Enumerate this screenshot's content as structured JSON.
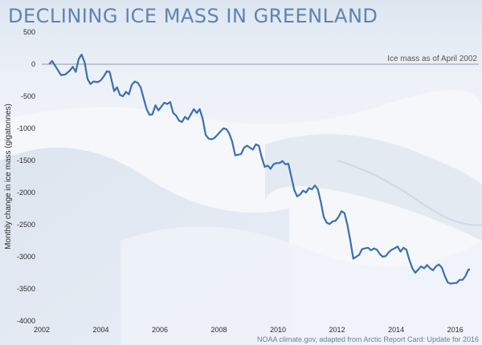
{
  "chart_data": {
    "type": "line",
    "title": "Declining ice mass in Greenland",
    "ylabel": "Monthly change in ice mass (gigatonnes)",
    "xlabel": "",
    "xlim": [
      2002,
      2016.8
    ],
    "ylim": [
      -4000,
      500
    ],
    "x_ticks": [
      "2002",
      "2004",
      "2006",
      "2008",
      "2010",
      "2012",
      "2014",
      "2016"
    ],
    "y_ticks": [
      "500",
      "0",
      "-500",
      "-1000",
      "-1500",
      "-2000",
      "-2500",
      "-3000",
      "-3500",
      "-4000"
    ],
    "baseline": {
      "y": 0,
      "label": "Ice mass as of April 2002"
    },
    "line_color": "#3b6fb0",
    "series": [
      {
        "points": [
          [
            2002.25,
            0
          ],
          [
            2002.35,
            50
          ],
          [
            2002.5,
            -60
          ],
          [
            2002.65,
            -170
          ],
          [
            2002.8,
            -160
          ],
          [
            2002.95,
            -100
          ],
          [
            2003.05,
            -40
          ],
          [
            2003.15,
            -120
          ],
          [
            2003.25,
            80
          ],
          [
            2003.35,
            150
          ],
          [
            2003.45,
            30
          ],
          [
            2003.55,
            -230
          ],
          [
            2003.65,
            -310
          ],
          [
            2003.75,
            -270
          ],
          [
            2003.9,
            -280
          ],
          [
            2004.0,
            -250
          ],
          [
            2004.1,
            -190
          ],
          [
            2004.2,
            -110
          ],
          [
            2004.3,
            -120
          ],
          [
            2004.35,
            -220
          ],
          [
            2004.45,
            -420
          ],
          [
            2004.55,
            -360
          ],
          [
            2004.65,
            -480
          ],
          [
            2004.75,
            -500
          ],
          [
            2004.85,
            -430
          ],
          [
            2004.95,
            -470
          ],
          [
            2005.05,
            -320
          ],
          [
            2005.15,
            -270
          ],
          [
            2005.25,
            -290
          ],
          [
            2005.35,
            -360
          ],
          [
            2005.45,
            -530
          ],
          [
            2005.55,
            -700
          ],
          [
            2005.65,
            -790
          ],
          [
            2005.75,
            -780
          ],
          [
            2005.85,
            -640
          ],
          [
            2005.95,
            -720
          ],
          [
            2006.05,
            -660
          ],
          [
            2006.15,
            -600
          ],
          [
            2006.25,
            -620
          ],
          [
            2006.35,
            -590
          ],
          [
            2006.45,
            -760
          ],
          [
            2006.55,
            -800
          ],
          [
            2006.65,
            -880
          ],
          [
            2006.75,
            -900
          ],
          [
            2006.85,
            -820
          ],
          [
            2006.95,
            -860
          ],
          [
            2007.05,
            -780
          ],
          [
            2007.15,
            -700
          ],
          [
            2007.25,
            -760
          ],
          [
            2007.35,
            -700
          ],
          [
            2007.45,
            -850
          ],
          [
            2007.55,
            -1100
          ],
          [
            2007.65,
            -1160
          ],
          [
            2007.75,
            -1170
          ],
          [
            2007.85,
            -1150
          ],
          [
            2007.95,
            -1100
          ],
          [
            2008.05,
            -1050
          ],
          [
            2008.15,
            -1000
          ],
          [
            2008.25,
            -1010
          ],
          [
            2008.35,
            -1080
          ],
          [
            2008.45,
            -1210
          ],
          [
            2008.55,
            -1420
          ],
          [
            2008.65,
            -1410
          ],
          [
            2008.75,
            -1400
          ],
          [
            2008.85,
            -1300
          ],
          [
            2008.95,
            -1270
          ],
          [
            2009.05,
            -1300
          ],
          [
            2009.15,
            -1330
          ],
          [
            2009.25,
            -1250
          ],
          [
            2009.35,
            -1270
          ],
          [
            2009.45,
            -1450
          ],
          [
            2009.55,
            -1600
          ],
          [
            2009.65,
            -1580
          ],
          [
            2009.75,
            -1630
          ],
          [
            2009.85,
            -1560
          ],
          [
            2009.95,
            -1540
          ],
          [
            2010.05,
            -1540
          ],
          [
            2010.15,
            -1510
          ],
          [
            2010.25,
            -1560
          ],
          [
            2010.35,
            -1550
          ],
          [
            2010.45,
            -1750
          ],
          [
            2010.55,
            -1960
          ],
          [
            2010.65,
            -2060
          ],
          [
            2010.75,
            -2030
          ],
          [
            2010.85,
            -1970
          ],
          [
            2010.95,
            -2000
          ],
          [
            2011.05,
            -1930
          ],
          [
            2011.15,
            -1950
          ],
          [
            2011.25,
            -1890
          ],
          [
            2011.35,
            -1950
          ],
          [
            2011.45,
            -2150
          ],
          [
            2011.55,
            -2380
          ],
          [
            2011.65,
            -2470
          ],
          [
            2011.75,
            -2490
          ],
          [
            2011.85,
            -2450
          ],
          [
            2011.95,
            -2440
          ],
          [
            2012.05,
            -2380
          ],
          [
            2012.15,
            -2290
          ],
          [
            2012.25,
            -2320
          ],
          [
            2012.35,
            -2500
          ],
          [
            2012.45,
            -2750
          ],
          [
            2012.55,
            -3030
          ],
          [
            2012.65,
            -3000
          ],
          [
            2012.75,
            -2970
          ],
          [
            2012.85,
            -2880
          ],
          [
            2012.95,
            -2870
          ],
          [
            2013.05,
            -2860
          ],
          [
            2013.15,
            -2900
          ],
          [
            2013.25,
            -2870
          ],
          [
            2013.35,
            -2890
          ],
          [
            2013.45,
            -2960
          ],
          [
            2013.55,
            -3000
          ],
          [
            2013.65,
            -2990
          ],
          [
            2013.75,
            -2930
          ],
          [
            2013.85,
            -2890
          ],
          [
            2013.95,
            -2870
          ],
          [
            2014.05,
            -2840
          ],
          [
            2014.15,
            -2920
          ],
          [
            2014.25,
            -2860
          ],
          [
            2014.35,
            -2890
          ],
          [
            2014.45,
            -3050
          ],
          [
            2014.55,
            -3180
          ],
          [
            2014.65,
            -3250
          ],
          [
            2014.75,
            -3200
          ],
          [
            2014.85,
            -3150
          ],
          [
            2014.95,
            -3180
          ],
          [
            2015.05,
            -3130
          ],
          [
            2015.15,
            -3180
          ],
          [
            2015.25,
            -3210
          ],
          [
            2015.35,
            -3150
          ],
          [
            2015.45,
            -3120
          ],
          [
            2015.55,
            -3170
          ],
          [
            2015.65,
            -3300
          ],
          [
            2015.75,
            -3400
          ],
          [
            2015.85,
            -3420
          ],
          [
            2015.95,
            -3410
          ],
          [
            2016.05,
            -3410
          ],
          [
            2016.15,
            -3360
          ],
          [
            2016.25,
            -3360
          ],
          [
            2016.35,
            -3300
          ],
          [
            2016.45,
            -3200
          ],
          [
            2016.5,
            -3200
          ]
        ]
      }
    ]
  },
  "credit": "NOAA climate.gov, adapted from Arctic Report Card: Update for 2016"
}
